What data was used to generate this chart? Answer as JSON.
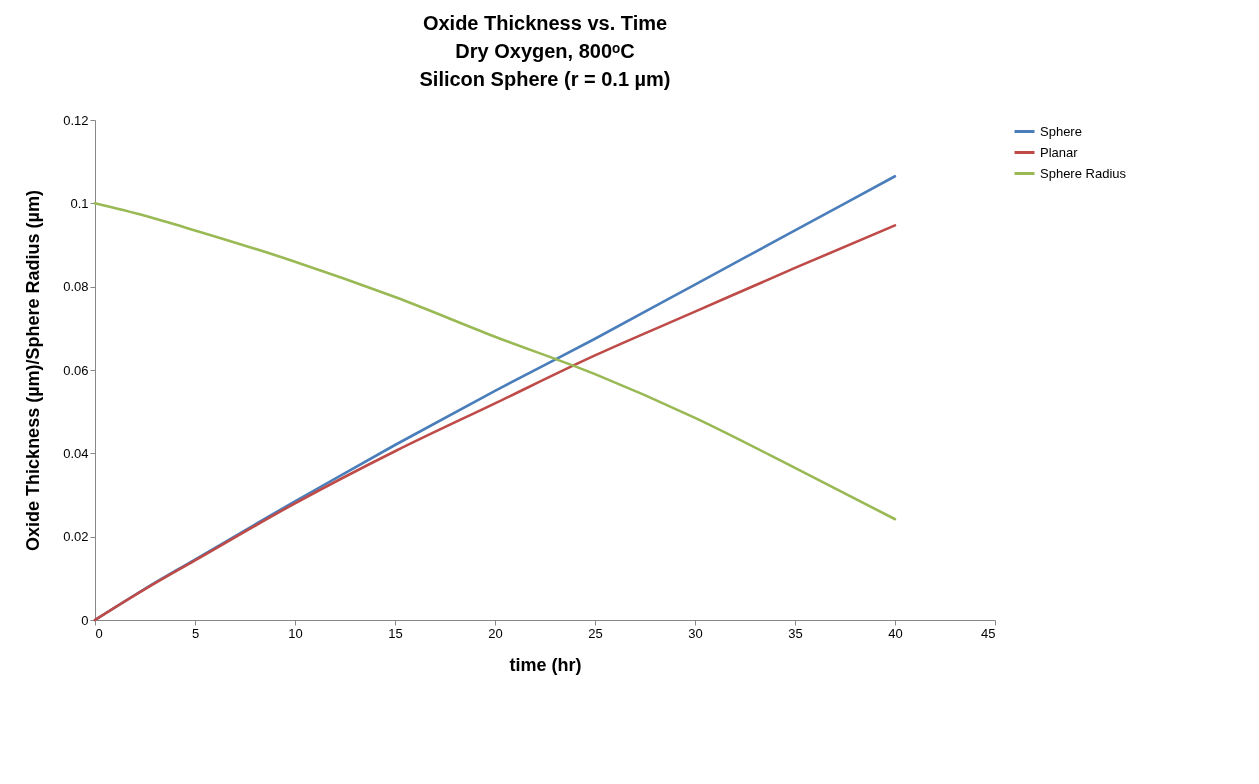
{
  "chart_data": {
    "type": "line",
    "title": [
      "Oxide Thickness vs. Time",
      "Dry Oxygen, 800ᵒC",
      "Silicon Sphere (r = 0.1 µm)"
    ],
    "xlabel": "time (hr)",
    "ylabel": "Oxide Thickness (µm)/Sphere Radius (µm)",
    "x": [
      0,
      2.5,
      5,
      10,
      15,
      20,
      25,
      30,
      35,
      40
    ],
    "series": [
      {
        "name": "Sphere",
        "color": "#4a7ebb",
        "values": [
          0,
          0.0075,
          0.0145,
          0.0285,
          0.042,
          0.055,
          0.0675,
          0.0805,
          0.0935,
          0.1065
        ]
      },
      {
        "name": "Planar",
        "color": "#be4b48",
        "values": [
          0,
          0.0074,
          0.0143,
          0.028,
          0.0405,
          0.052,
          0.0635,
          0.074,
          0.0845,
          0.0947
        ]
      },
      {
        "name": "Sphere Radius",
        "color": "#98b954",
        "values": [
          0.1,
          0.097,
          0.0935,
          0.086,
          0.0775,
          0.068,
          0.059,
          0.0485,
          0.0365,
          0.0242
        ]
      }
    ],
    "xlim": [
      0,
      45
    ],
    "xticks": [
      0,
      5,
      10,
      15,
      20,
      25,
      30,
      35,
      40,
      45
    ],
    "ylim": [
      0,
      0.12
    ],
    "yticks": [
      0,
      0.02,
      0.04,
      0.06,
      0.08,
      0.1,
      0.12
    ],
    "grid": false,
    "legend": "right",
    "marker": "none",
    "line_style": "solid"
  }
}
